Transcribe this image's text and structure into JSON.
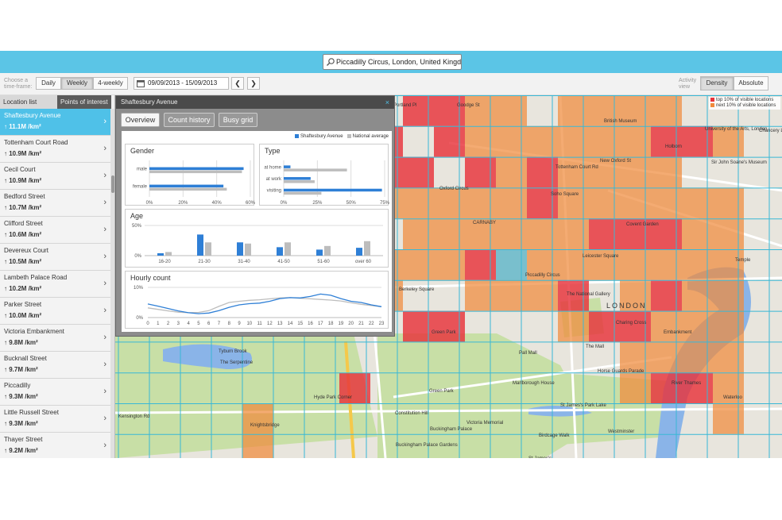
{
  "search": {
    "value": "Piccadilly Circus, London, United Kingdom",
    "icon": "search-icon"
  },
  "toolbar": {
    "timeframe_label": "Choose a time-frame:",
    "timeframes": [
      "Daily",
      "Weekly",
      "4-weekly"
    ],
    "selected_timeframe": "Weekly",
    "date_range": "09/09/2013 - 15/09/2013",
    "prev_label": "❮",
    "next_label": "❯",
    "activity_label": "Activity view",
    "views": [
      "Density",
      "Absolute"
    ],
    "selected_view": "Density"
  },
  "sidebar": {
    "tabs": [
      "Location list",
      "Points of interest"
    ],
    "active_tab": "Location list",
    "items": [
      {
        "name": "Shaftesbury Avenue",
        "value": "11.1M /km²"
      },
      {
        "name": "Tottenham Court Road",
        "value": "10.9M /km²"
      },
      {
        "name": "Cecil Court",
        "value": "10.9M /km²"
      },
      {
        "name": "Bedford Street",
        "value": "10.7M /km²"
      },
      {
        "name": "Clifford Street",
        "value": "10.6M /km²"
      },
      {
        "name": "Devereux Court",
        "value": "10.5M /km²"
      },
      {
        "name": "Lambeth Palace Road",
        "value": "10.2M /km²"
      },
      {
        "name": "Parker Street",
        "value": "10.0M /km²"
      },
      {
        "name": "Victoria Embankment",
        "value": "9.8M /km²"
      },
      {
        "name": "Bucknall Street",
        "value": "9.7M /km²"
      },
      {
        "name": "Piccadilly",
        "value": "9.3M /km²"
      },
      {
        "name": "Little Russell Street",
        "value": "9.3M /km²"
      },
      {
        "name": "Thayer Street",
        "value": "9.2M /km²"
      }
    ]
  },
  "panel": {
    "title": "Shaftesbury Avenue",
    "close_label": "×",
    "tabs": [
      "Overview",
      "Count history",
      "Busy grid"
    ],
    "active_tab": "Overview",
    "legend": [
      "Shaftesbury Avenue",
      "National average"
    ],
    "colors": {
      "location": "#2e7fd6",
      "national": "#bdbdbd"
    }
  },
  "map": {
    "legend": [
      "top 10% of visible locations",
      "next 10% of visible locations"
    ],
    "colors": {
      "top": "#e8323a",
      "next": "#f08a3c",
      "selected": "#5bc5e6",
      "grid": "#39b8d6"
    },
    "labels": [
      "Portland Pl",
      "Goodge St",
      "British Museum",
      "Holborn",
      "University of the Arts, London",
      "Chancery Lane",
      "Tottenham Court Rd",
      "New Oxford St",
      "Sir John Soane's Museum",
      "Oxford Circus",
      "Soho Square",
      "Covent Garden",
      "Temple",
      "Leicester Square",
      "Piccadilly Circus",
      "CARNABY",
      "Berkeley Square",
      "The National Gallery",
      "Charing Cross",
      "Embankment",
      "LONDON",
      "Green Park",
      "Pall Mall",
      "The Mall",
      "Horse Guards Parade",
      "Tyburn Brook",
      "The Serpentine",
      "Hyde Park Corner",
      "Green Park",
      "Constitution Hill",
      "Kensington Rd",
      "Knightsbridge",
      "Victoria Memorial",
      "Buckingham Palace",
      "Buckingham Palace Gardens",
      "Birdcage Walk",
      "Westminster",
      "St James's",
      "Waterloo",
      "River Thames",
      "Marlborough House",
      "St James's Park Lake"
    ]
  },
  "chart_data": [
    {
      "type": "bar",
      "title": "Gender",
      "orientation": "horizontal",
      "categories": [
        "male",
        "female"
      ],
      "series": [
        {
          "name": "Shaftesbury Avenue",
          "values": [
            56,
            44
          ]
        },
        {
          "name": "National average",
          "values": [
            55,
            46
          ]
        }
      ],
      "xlim": [
        0,
        60
      ],
      "tick_labels": [
        "0%",
        "20%",
        "40%",
        "60%"
      ]
    },
    {
      "type": "bar",
      "title": "Type",
      "orientation": "horizontal",
      "categories": [
        "at home",
        "at work",
        "visiting"
      ],
      "series": [
        {
          "name": "Shaftesbury Avenue",
          "values": [
            5,
            20,
            73
          ]
        },
        {
          "name": "National average",
          "values": [
            47,
            23,
            28
          ]
        }
      ],
      "xlim": [
        0,
        75
      ],
      "tick_labels": [
        "0%",
        "25%",
        "50%",
        "75%"
      ]
    },
    {
      "type": "bar",
      "title": "Age",
      "categories": [
        "16-20",
        "21-30",
        "31-40",
        "41-50",
        "51-60",
        "over 60"
      ],
      "series": [
        {
          "name": "Shaftesbury Avenue",
          "values": [
            4,
            35,
            22,
            14,
            10,
            13
          ]
        },
        {
          "name": "National average",
          "values": [
            6,
            22,
            20,
            22,
            16,
            24
          ]
        }
      ],
      "ylim": [
        0,
        50
      ],
      "tick_labels": [
        "0%",
        "50%"
      ]
    },
    {
      "type": "line",
      "title": "Hourly count",
      "x": [
        0,
        1,
        2,
        3,
        4,
        5,
        6,
        7,
        8,
        9,
        10,
        11,
        12,
        13,
        14,
        15,
        16,
        17,
        18,
        19,
        20,
        21,
        22,
        23
      ],
      "series": [
        {
          "name": "Shaftesbury Avenue",
          "values": [
            4.5,
            3.8,
            3.0,
            2.2,
            1.6,
            1.3,
            1.5,
            2.3,
            3.4,
            4.2,
            4.6,
            4.8,
            5.4,
            6.3,
            6.6,
            6.5,
            7.0,
            7.8,
            7.4,
            6.3,
            5.4,
            5.0,
            4.2,
            3.6
          ]
        },
        {
          "name": "National average",
          "values": [
            3.2,
            2.7,
            2.2,
            1.8,
            1.6,
            1.7,
            2.3,
            3.7,
            5.0,
            5.4,
            5.7,
            5.9,
            6.2,
            6.5,
            6.6,
            6.4,
            6.2,
            6.0,
            5.8,
            5.5,
            4.9,
            4.4,
            4.0,
            3.6
          ]
        }
      ],
      "ylim": [
        0,
        10
      ],
      "tick_labels": [
        "0%",
        "10%"
      ]
    }
  ]
}
